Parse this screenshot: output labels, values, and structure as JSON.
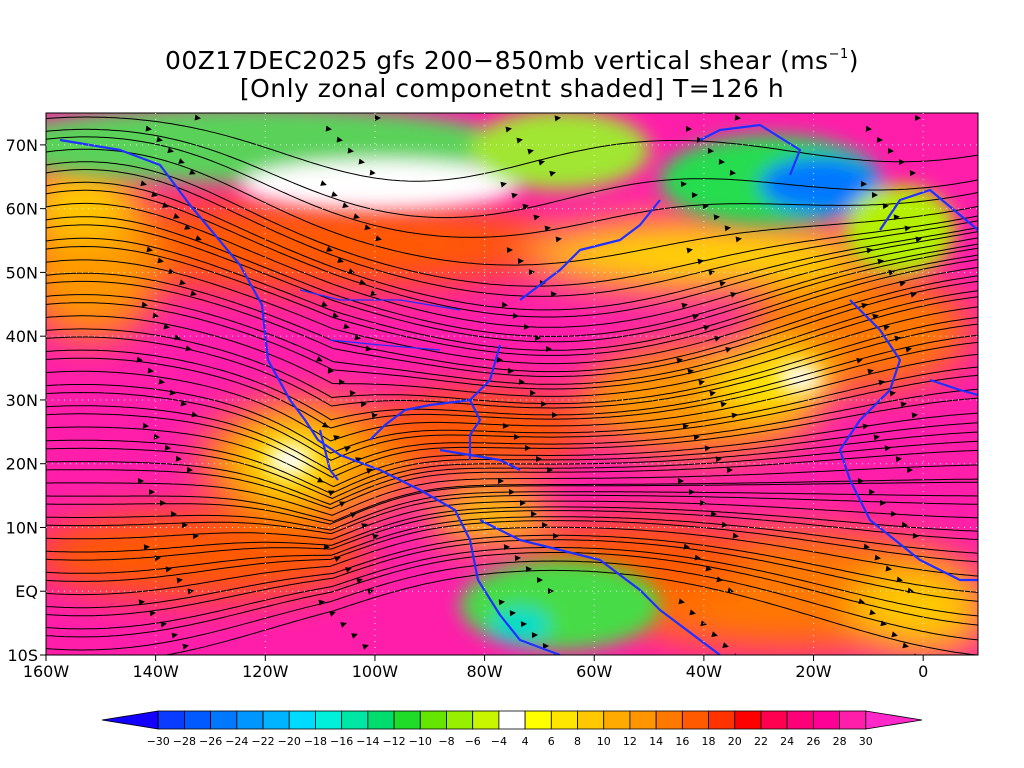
{
  "title": {
    "line1_text": "00Z17DEC2025 gfs 200−850mb vertical shear (ms",
    "line1_sup": "−1",
    "line1_end": ")",
    "line2": "[Only zonal componetnt shaded] T=126 h"
  },
  "map": {
    "lon_min": -160,
    "lon_max": 10,
    "lat_min": -10,
    "lat_max": 75,
    "lat_labels": [
      {
        "lat": 70,
        "text": "70N"
      },
      {
        "lat": 60,
        "text": "60N"
      },
      {
        "lat": 50,
        "text": "50N"
      },
      {
        "lat": 40,
        "text": "40N"
      },
      {
        "lat": 30,
        "text": "30N"
      },
      {
        "lat": 20,
        "text": "20N"
      },
      {
        "lat": 10,
        "text": "10N"
      },
      {
        "lat": 0,
        "text": "EQ"
      },
      {
        "lat": -10,
        "text": "10S"
      }
    ],
    "lon_labels": [
      {
        "lon": -160,
        "text": "160W"
      },
      {
        "lon": -140,
        "text": "140W"
      },
      {
        "lon": -120,
        "text": "120W"
      },
      {
        "lon": -100,
        "text": "100W"
      },
      {
        "lon": -80,
        "text": "80W"
      },
      {
        "lon": -60,
        "text": "60W"
      },
      {
        "lon": -40,
        "text": "40W"
      },
      {
        "lon": -20,
        "text": "20W"
      },
      {
        "lon": 0,
        "text": "0"
      }
    ]
  },
  "colorbar": {
    "labels": [
      "−30",
      "−28",
      "−26",
      "−24",
      "−22",
      "−20",
      "−18",
      "−16",
      "−14",
      "−12",
      "−10",
      "−8",
      "−6",
      "−4",
      "4",
      "6",
      "8",
      "10",
      "12",
      "14",
      "16",
      "18",
      "20",
      "22",
      "24",
      "26",
      "28",
      "30"
    ],
    "colors": [
      "#1400ff",
      "#0a3cff",
      "#005aff",
      "#0078ff",
      "#0096ff",
      "#00b4ff",
      "#00dcff",
      "#00f0dc",
      "#00e6a5",
      "#00dc6e",
      "#1edc28",
      "#64e600",
      "#96f000",
      "#c8f500",
      "#ffffff",
      "#ffff00",
      "#ffe600",
      "#ffc800",
      "#ffaa00",
      "#ff9600",
      "#ff7800",
      "#ff5a00",
      "#ff3200",
      "#ff0000",
      "#ff0050",
      "#ff0078",
      "#ff0096",
      "#ff1eaa",
      "#ff28c8"
    ]
  }
}
